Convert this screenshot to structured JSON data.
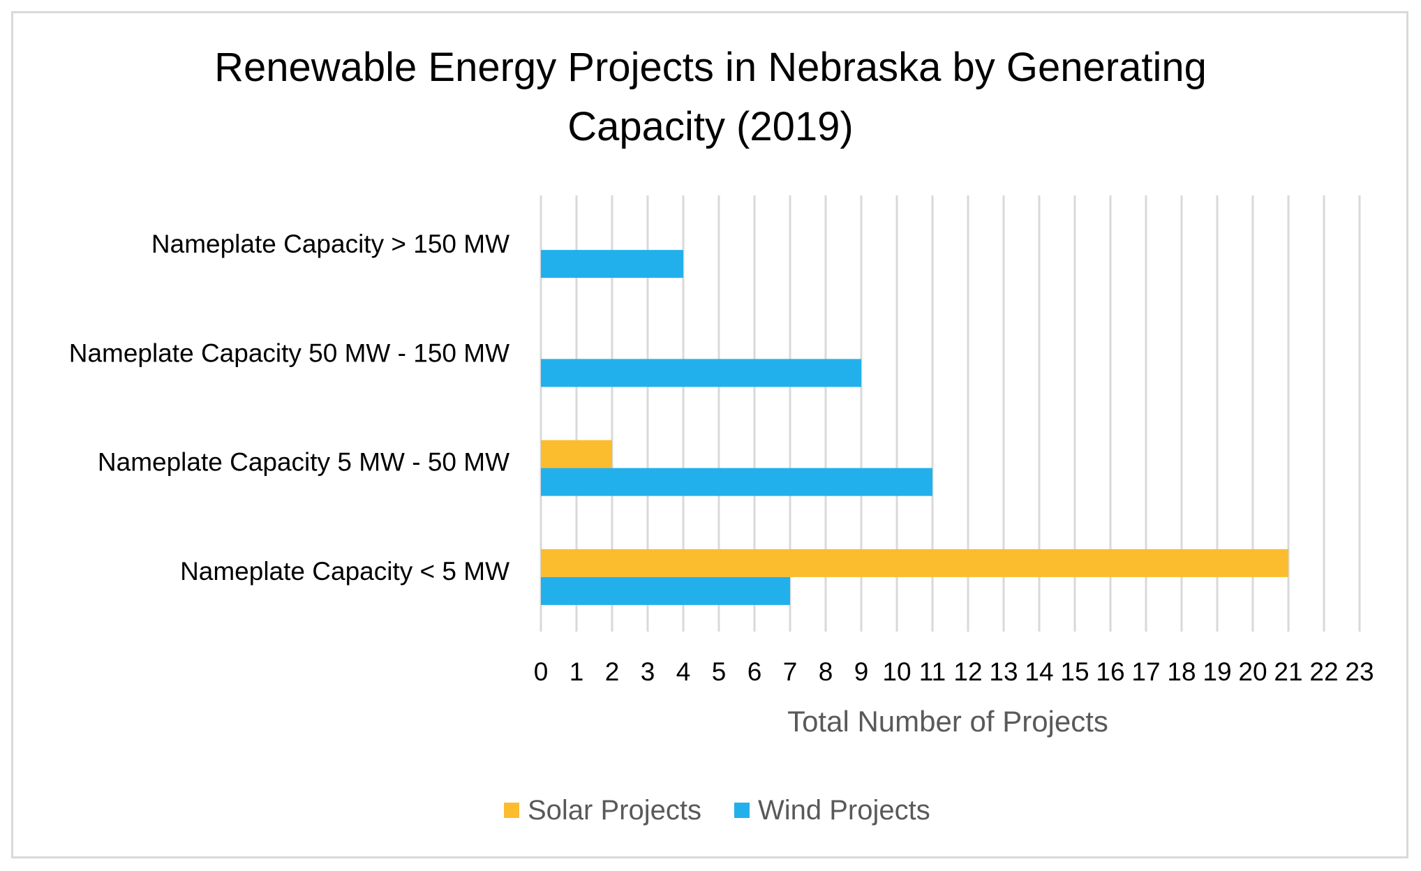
{
  "chart_data": {
    "type": "bar",
    "orientation": "horizontal",
    "title_lines": [
      "Renewable Energy Projects in Nebraska by Generating",
      "Capacity (2019)"
    ],
    "xlabel": "Total Number of Projects",
    "ylabel": "",
    "categories": [
      "Nameplate Capacity > 150 MW",
      "Nameplate Capacity 50 MW - 150 MW",
      "Nameplate Capacity 5 MW - 50 MW",
      "Nameplate Capacity < 5 MW"
    ],
    "series": [
      {
        "name": "Solar Projects",
        "color": "#FBBC2E",
        "values": [
          0,
          0,
          2,
          21
        ]
      },
      {
        "name": "Wind Projects",
        "color": "#22B0EC",
        "values": [
          4,
          9,
          11,
          7
        ]
      }
    ],
    "xlim": [
      0,
      23
    ],
    "xticks": [
      0,
      1,
      2,
      3,
      4,
      5,
      6,
      7,
      8,
      9,
      10,
      11,
      12,
      13,
      14,
      15,
      16,
      17,
      18,
      19,
      20,
      21,
      22,
      23
    ],
    "grid": "vertical",
    "legend_position": "bottom"
  }
}
